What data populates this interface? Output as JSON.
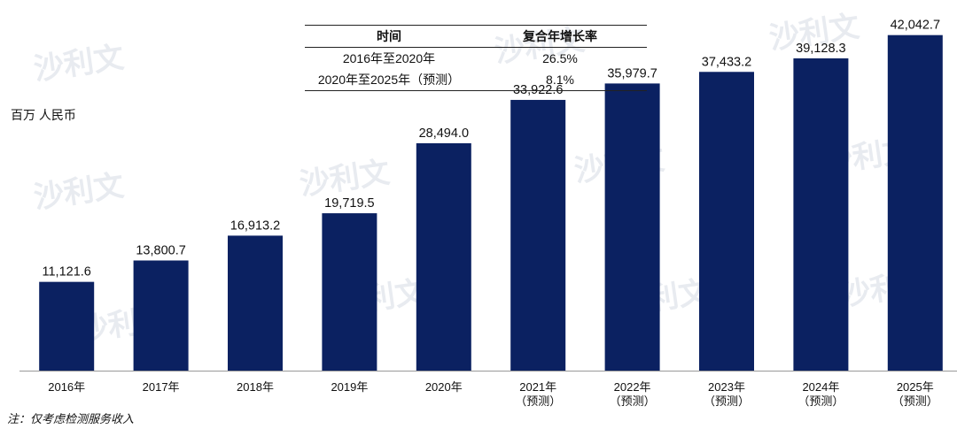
{
  "table": {
    "headers": [
      "时间",
      "复合年增长率"
    ],
    "rows": [
      [
        "2016年至2020年",
        "26.5%"
      ],
      [
        "2020年至2025年（预测）",
        "8.1%"
      ]
    ]
  },
  "unit_label": "百万 人民币",
  "footnote": "注：仅考虑检测服务收入",
  "watermark": "沙利文",
  "colors": {
    "bar": "#0b2161",
    "axis": "#999999"
  },
  "chart_data": {
    "type": "bar",
    "categories": [
      [
        "2016年"
      ],
      [
        "2017年"
      ],
      [
        "2018年"
      ],
      [
        "2019年"
      ],
      [
        "2020年"
      ],
      [
        "2021年",
        "（预测）"
      ],
      [
        "2022年",
        "（预测）"
      ],
      [
        "2023年",
        "（预测）"
      ],
      [
        "2024年",
        "（预测）"
      ],
      [
        "2025年",
        "（预测）"
      ]
    ],
    "values": [
      11121.6,
      13800.7,
      16913.2,
      19719.5,
      28494.0,
      33922.6,
      35979.7,
      37433.2,
      39128.3,
      42042.7
    ],
    "value_labels": [
      "11,121.6",
      "13,800.7",
      "16,913.2",
      "19,719.5",
      "28,494.0",
      "33,922.6",
      "35,979.7",
      "37,433.2",
      "39,128.3",
      "42,042.7"
    ],
    "ylim": [
      0,
      45000
    ]
  }
}
